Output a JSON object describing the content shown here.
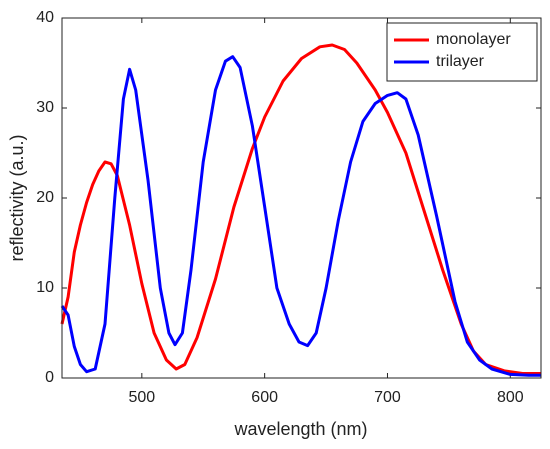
{
  "chart_data": {
    "type": "line",
    "xlabel": "wavelength (nm)",
    "ylabel": "reflectivity (a.u.)",
    "xlim": [
      435,
      825
    ],
    "xticks": [
      500,
      600,
      700,
      800
    ],
    "ylim": [
      0,
      40
    ],
    "yticks": [
      0,
      10,
      20,
      30,
      40
    ],
    "legend": "upper right",
    "series": [
      {
        "name": "monolayer",
        "color": "#ff0000",
        "x": [
          435,
          440,
          445,
          450,
          455,
          460,
          465,
          470,
          475,
          480,
          490,
          500,
          510,
          520,
          528,
          535,
          545,
          560,
          575,
          590,
          600,
          615,
          630,
          645,
          655,
          665,
          675,
          690,
          700,
          715,
          730,
          745,
          760,
          770,
          780,
          795,
          810,
          825
        ],
        "values": [
          6,
          9,
          14,
          17,
          19.5,
          21.5,
          23,
          24,
          23.8,
          22.5,
          17,
          10.5,
          5,
          2,
          1,
          1.5,
          4.5,
          11,
          19,
          25.5,
          29,
          33,
          35.5,
          36.8,
          37,
          36.5,
          35,
          32,
          29.5,
          25,
          18.5,
          12,
          6,
          3,
          1.5,
          0.8,
          0.5,
          0.5
        ]
      },
      {
        "name": "trilayer",
        "color": "#0000ff",
        "x": [
          435,
          440,
          445,
          450,
          455,
          462,
          470,
          478,
          485,
          490,
          495,
          505,
          515,
          522,
          527,
          533,
          540,
          550,
          560,
          568,
          574,
          580,
          590,
          600,
          610,
          620,
          628,
          635,
          642,
          650,
          660,
          670,
          680,
          690,
          700,
          708,
          715,
          725,
          740,
          755,
          765,
          775,
          785,
          800,
          815,
          825
        ],
        "values": [
          8,
          7,
          3.5,
          1.5,
          0.7,
          1,
          6,
          20,
          31,
          34.3,
          32,
          22,
          10,
          5,
          3.7,
          5,
          12,
          24,
          32,
          35.2,
          35.7,
          34.5,
          28,
          19,
          10,
          6,
          4,
          3.6,
          5,
          10,
          17.5,
          24,
          28.5,
          30.5,
          31.4,
          31.7,
          31,
          27,
          18,
          8.5,
          4,
          2,
          1,
          0.4,
          0.3,
          0.3
        ]
      }
    ]
  }
}
